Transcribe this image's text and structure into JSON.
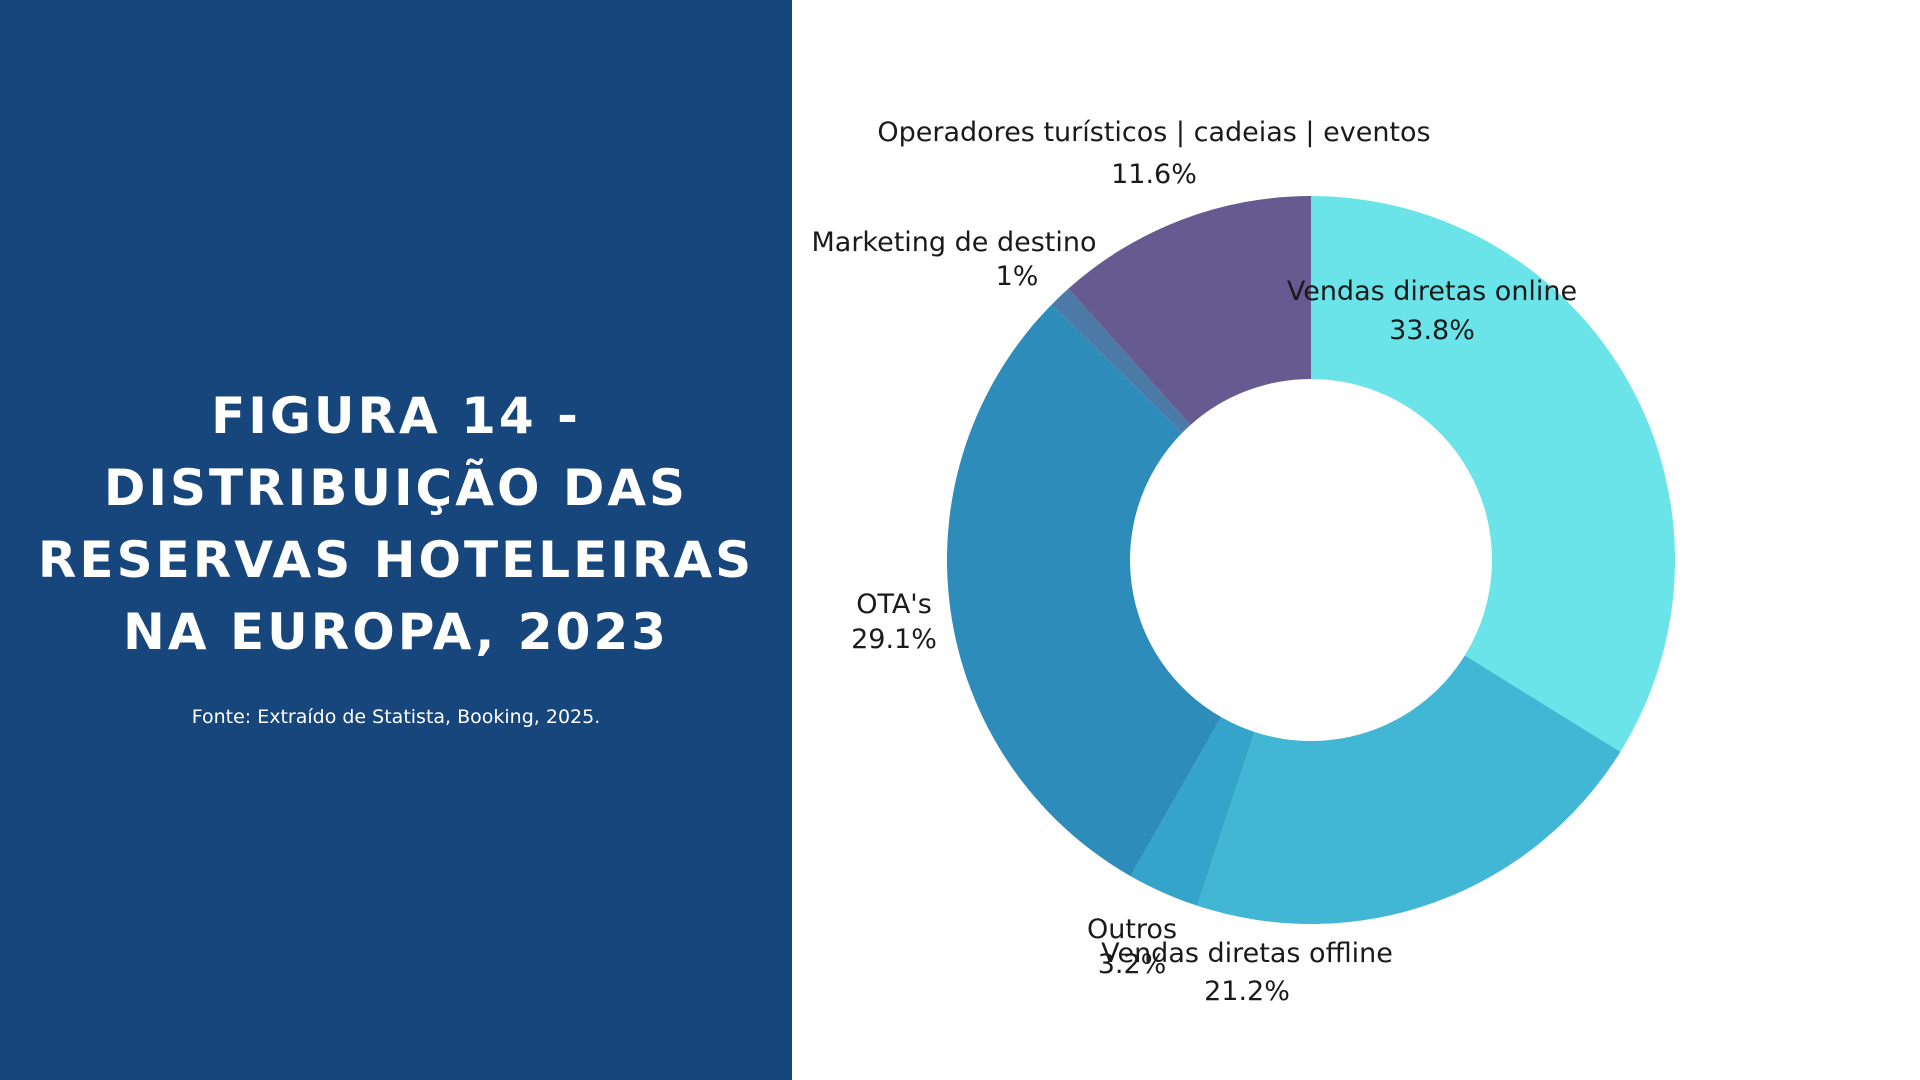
{
  "title": "Figura 14 - Distribuição das reservas hoteleiras na Europa, 2023",
  "source": "Fonte: Extraído de Statista, Booking, 2025.",
  "colors": {
    "panel": "#17467c",
    "panel_text": "#ffffff"
  },
  "chart_data": {
    "type": "pie",
    "donut": true,
    "slices": [
      {
        "label": "Vendas diretas online",
        "value": 33.8,
        "value_label": "33.8%",
        "color": "#6ae4e8"
      },
      {
        "label": "Vendas diretas offline",
        "value": 21.2,
        "value_label": "21.2%",
        "color": "#42b7d5"
      },
      {
        "label": "Outros",
        "value": 3.2,
        "value_label": "3.2%",
        "color": "#35a4cb"
      },
      {
        "label": "OTA's",
        "value": 29.1,
        "value_label": "29.1%",
        "color": "#2e8cba"
      },
      {
        "label": "Marketing de destino",
        "value": 1,
        "value_label": "1%",
        "color": "#4c7aa6"
      },
      {
        "label": "Operadores turísticos | cadeias | eventos",
        "value": 11.6,
        "value_label": "11.6%",
        "color": "#655b90"
      }
    ]
  }
}
